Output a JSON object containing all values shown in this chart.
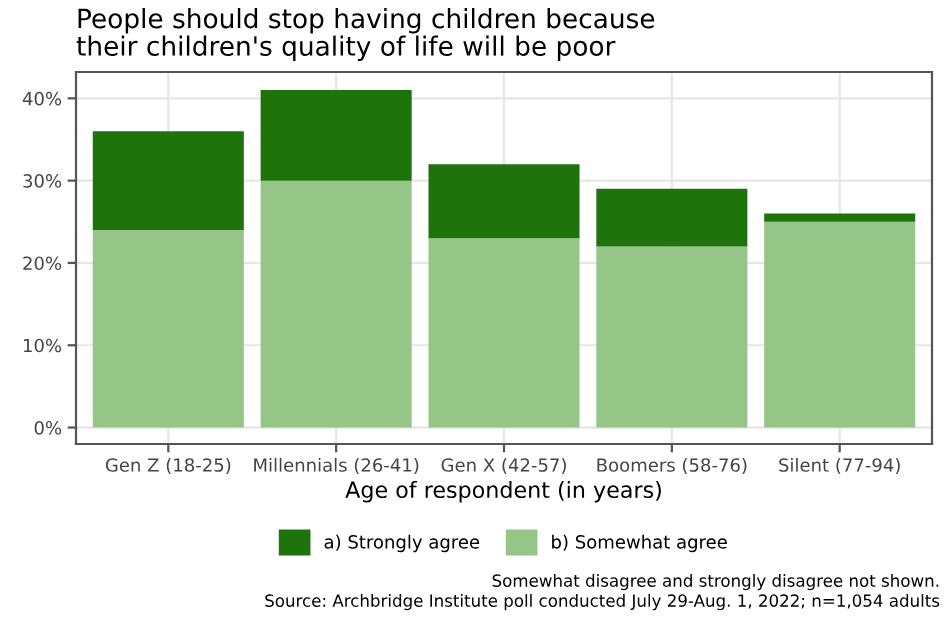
{
  "chart_data": {
    "type": "bar",
    "title": "People should stop having children because\ntheir children's quality of life will be poor",
    "xlabel": "Age of respondent (in years)",
    "categories": [
      "Gen Z (18-25)",
      "Millennials (26-41)",
      "Gen X (42-57)",
      "Boomers (58-76)",
      "Silent (77-94)"
    ],
    "stacked": true,
    "series": [
      {
        "name": "b) Somewhat agree",
        "color": "#96c687",
        "values": [
          24,
          30,
          23,
          22,
          25
        ]
      },
      {
        "name": "a) Strongly agree",
        "color": "#1f730c",
        "values": [
          12,
          11,
          9,
          7,
          1
        ]
      }
    ],
    "ylim": [
      -2,
      43.2
    ],
    "yticks": [
      {
        "value": 0,
        "label": "0%"
      },
      {
        "value": 10,
        "label": "10%"
      },
      {
        "value": 20,
        "label": "20%"
      },
      {
        "value": 30,
        "label": "30%"
      },
      {
        "value": 40,
        "label": "40%"
      }
    ],
    "grid": true,
    "legend": "bottom",
    "annotations": [
      "Somewhat disagree and strongly disagree not shown.",
      "Source: Archbridge Institute poll conducted July 29-Aug. 1, 2022; n=1,054 adults"
    ]
  }
}
